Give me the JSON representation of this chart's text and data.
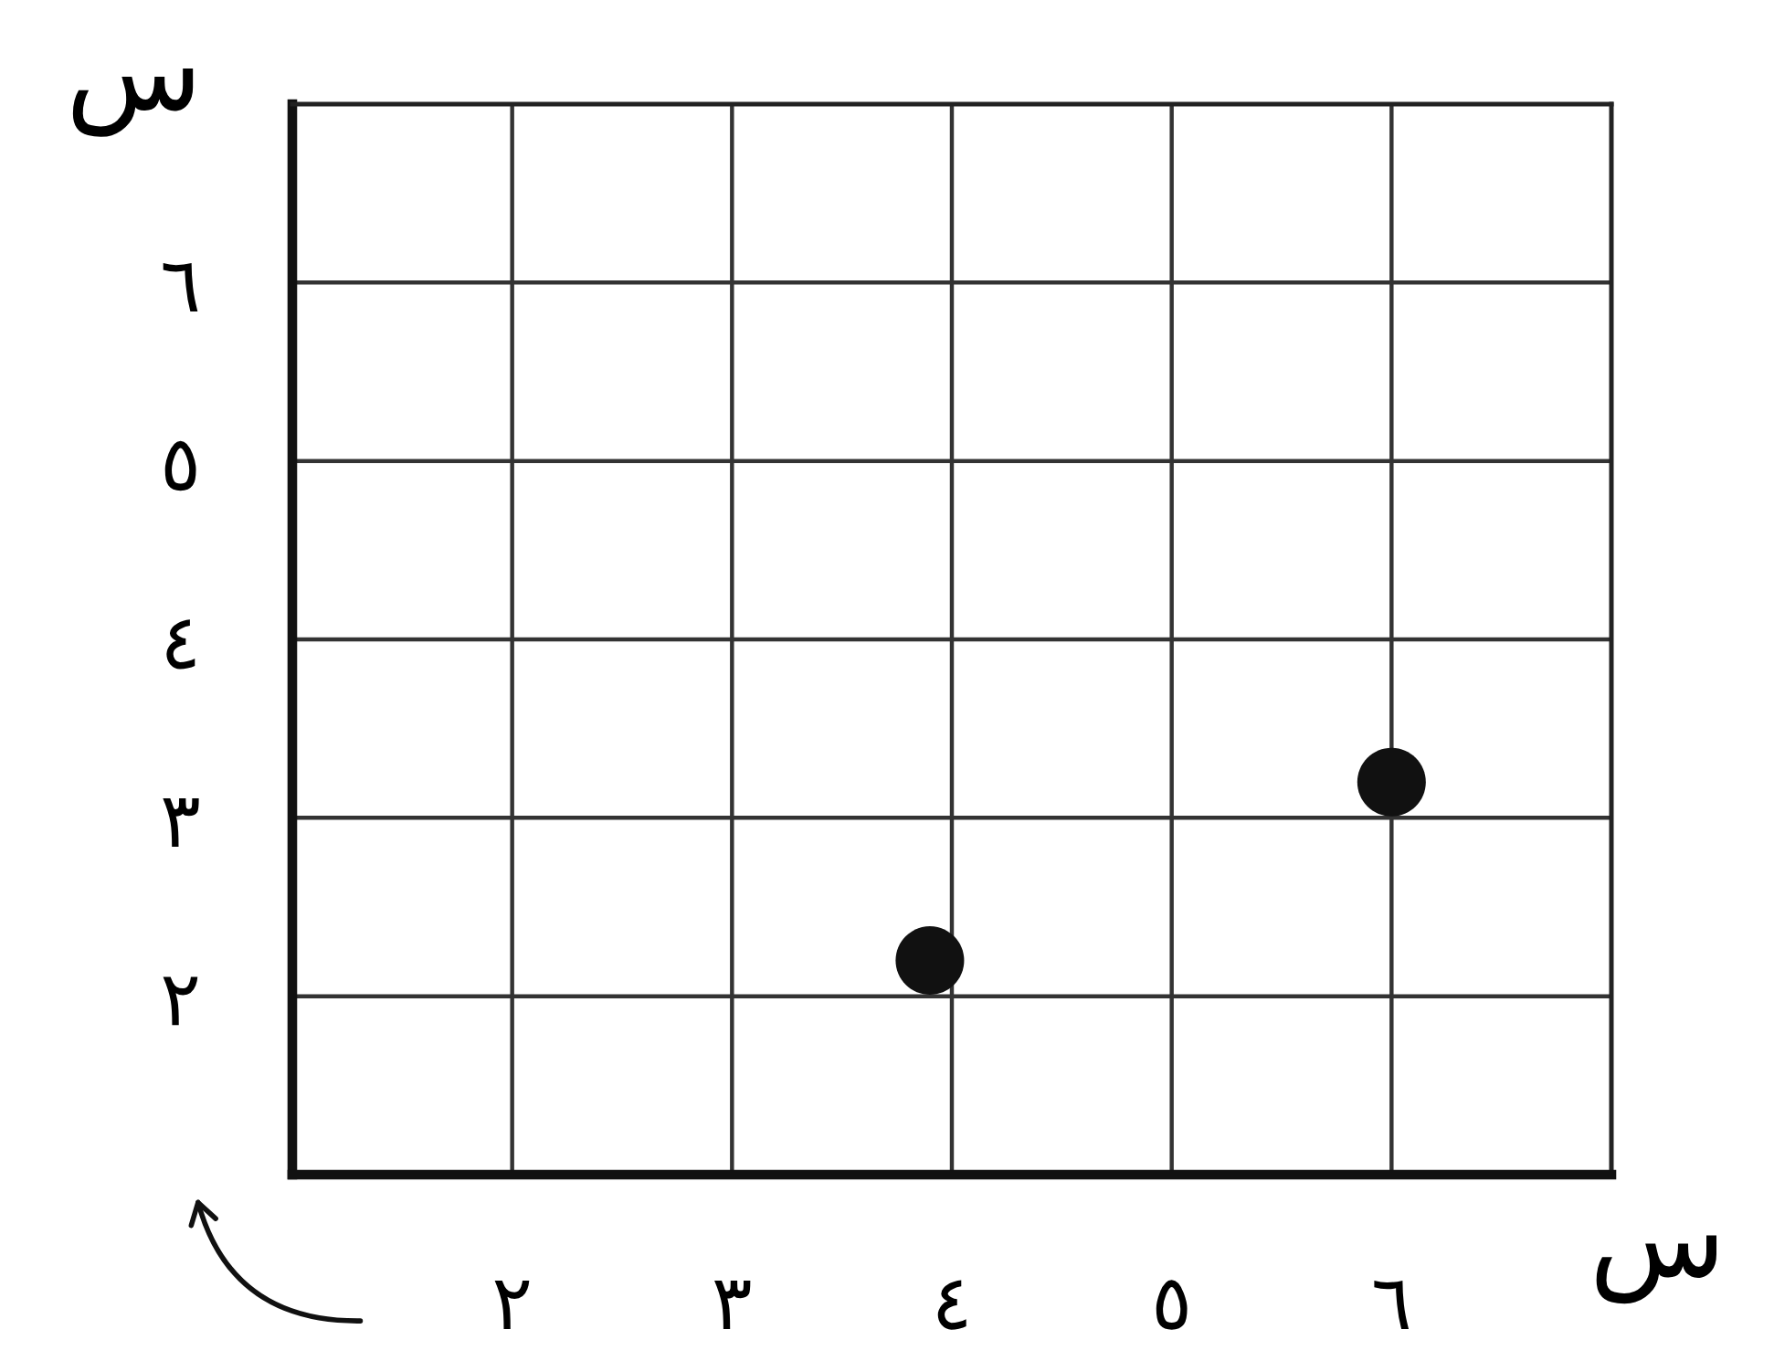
{
  "chart_data": {
    "type": "scatter",
    "xlabel": "س",
    "ylabel": "س",
    "x": [
      3.9,
      6
    ],
    "values": [
      2.2,
      3.2
    ],
    "color": "#111111",
    "marker": "circle",
    "xlim": [
      1,
      7
    ],
    "ylim": [
      1,
      7
    ],
    "xticks": [
      {
        "value": 2,
        "label": "٢"
      },
      {
        "value": 3,
        "label": "٣"
      },
      {
        "value": 4,
        "label": "٤"
      },
      {
        "value": 5,
        "label": "٥"
      },
      {
        "value": 6,
        "label": "٦"
      }
    ],
    "yticks": [
      {
        "value": 2,
        "label": "٢"
      },
      {
        "value": 3,
        "label": "٣"
      },
      {
        "value": 4,
        "label": "٤"
      },
      {
        "value": 5,
        "label": "٥"
      },
      {
        "value": 6,
        "label": "٦"
      }
    ],
    "grid": true
  }
}
